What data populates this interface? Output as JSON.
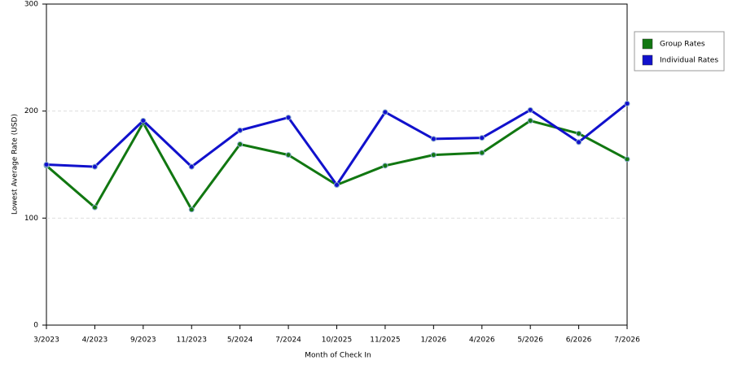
{
  "chart_data": {
    "type": "line",
    "x_label": "Month of Check In",
    "y_label": "Lowest Average Rate (USD)",
    "categories": [
      "3/2023",
      "4/2023",
      "9/2023",
      "11/2023",
      "5/2024",
      "7/2024",
      "10/2025",
      "11/2025",
      "1/2026",
      "4/2026",
      "5/2026",
      "6/2026",
      "7/2026"
    ],
    "series": [
      {
        "name": "Group Rates",
        "color": "#117711",
        "values": [
          149,
          110,
          189,
          108,
          169,
          159,
          131,
          149,
          159,
          161,
          191,
          179,
          155
        ]
      },
      {
        "name": "Individual Rates",
        "color": "#1111cc",
        "values": [
          150,
          148,
          191,
          148,
          182,
          194,
          131,
          199,
          174,
          175,
          201,
          171,
          207
        ]
      }
    ],
    "ylim": [
      0,
      300
    ],
    "yticks": [
      0,
      100,
      200,
      300
    ],
    "grid": true,
    "legend": "right"
  }
}
